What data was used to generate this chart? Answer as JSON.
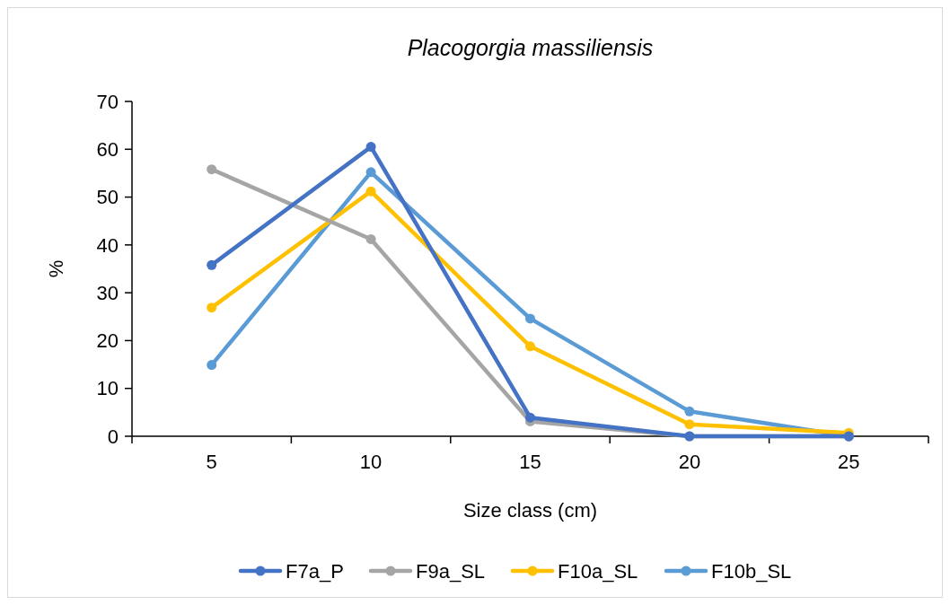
{
  "chart_data": {
    "type": "line",
    "title": "Placogorgia massiliensis",
    "xlabel": "Size class (cm)",
    "ylabel": "%",
    "categories": [
      "5",
      "10",
      "15",
      "20",
      "25"
    ],
    "series": [
      {
        "name": "F7a_P",
        "color": "#4472c4",
        "values": [
          35.8,
          60.5,
          3.9,
          0,
          0
        ]
      },
      {
        "name": "F9a_SL",
        "color": "#a5a5a5",
        "values": [
          55.8,
          41.2,
          3.1,
          0,
          0
        ]
      },
      {
        "name": "F10a_SL",
        "color": "#ffc000",
        "values": [
          26.9,
          51.2,
          18.8,
          2.5,
          0.7
        ]
      },
      {
        "name": "F10b_SL",
        "color": "#5b9bd5",
        "values": [
          14.9,
          55.2,
          24.6,
          5.2,
          0
        ]
      }
    ],
    "ylim": [
      0,
      70
    ],
    "yticks": [
      0,
      10,
      20,
      30,
      40,
      50,
      60,
      70
    ],
    "grid": false,
    "legend": "bottom",
    "marker": "circle",
    "line_style": "solid"
  }
}
